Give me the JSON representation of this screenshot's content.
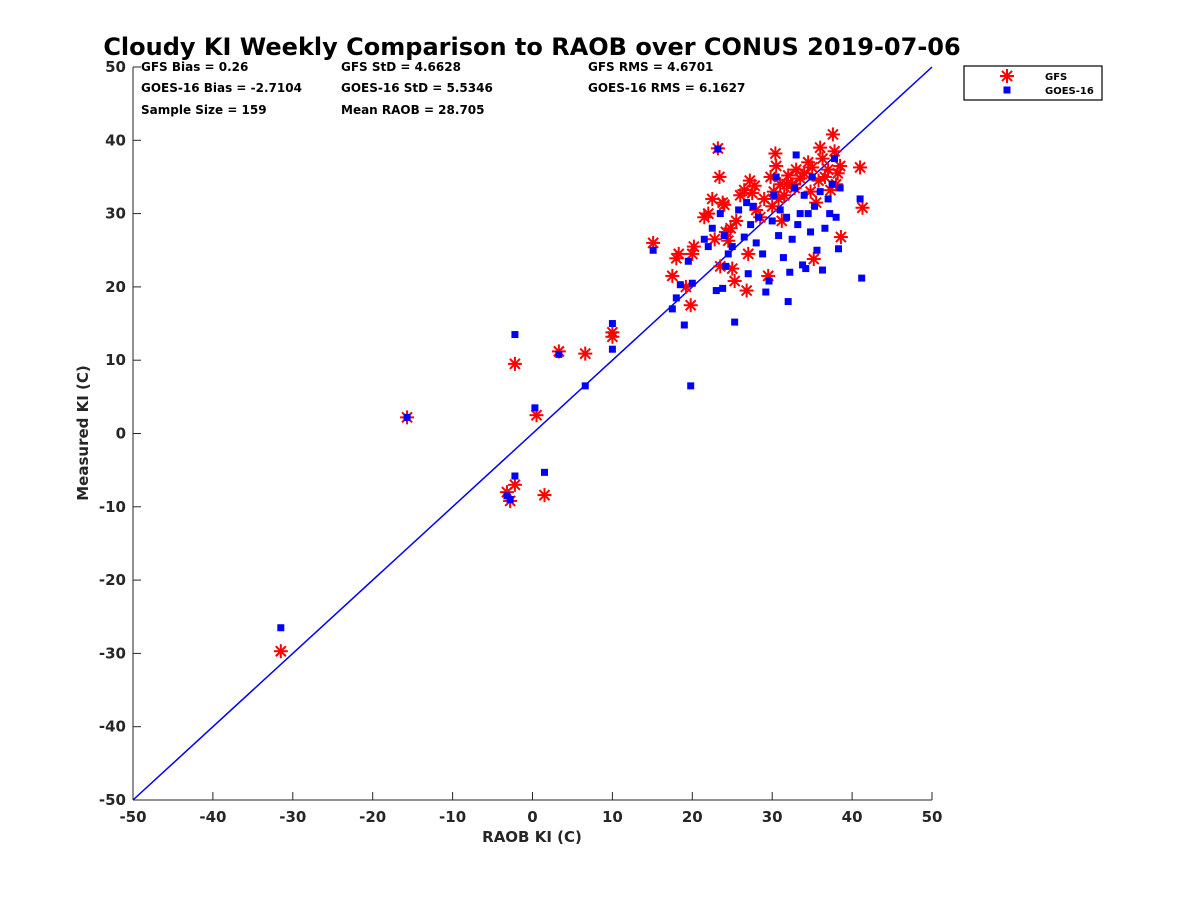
{
  "chart_data": {
    "type": "scatter",
    "title": "Cloudy KI Weekly Comparison to RAOB over CONUS 2019-07-06",
    "xlabel": "RAOB KI (C)",
    "ylabel": "Measured KI (C)",
    "xlim": [
      -50,
      50
    ],
    "ylim": [
      -50,
      50
    ],
    "xticks": [
      -50,
      -40,
      -30,
      -20,
      -10,
      0,
      10,
      20,
      30,
      40,
      50
    ],
    "yticks": [
      -50,
      -40,
      -30,
      -20,
      -10,
      0,
      10,
      20,
      30,
      40,
      50
    ],
    "grid": false,
    "legend_position": "top-right outside",
    "reference_line": {
      "type": "one-to-one",
      "color": "#0000ff"
    },
    "stats": [
      [
        "GFS Bias = 0.26",
        "GFS StD = 4.6628",
        "GFS RMS = 4.6701"
      ],
      [
        "GOES-16 Bias = -2.7104",
        "GOES-16 StD = 5.5346",
        "GOES-16 RMS = 6.1627"
      ],
      [
        "Sample Size = 159",
        "Mean RAOB = 28.705",
        ""
      ]
    ],
    "series": [
      {
        "name": "GFS",
        "marker": "asterisk",
        "color": "#ff0000",
        "points": [
          [
            -31.5,
            -29.7
          ],
          [
            -15.7,
            2.2
          ],
          [
            -3.2,
            -8
          ],
          [
            -2.8,
            -9.2
          ],
          [
            -2.2,
            -7
          ],
          [
            -2.2,
            9.5
          ],
          [
            0.5,
            2.5
          ],
          [
            1.5,
            -8.4
          ],
          [
            3.3,
            11.2
          ],
          [
            6.6,
            10.9
          ],
          [
            10,
            13.8
          ],
          [
            10,
            13.2
          ],
          [
            15.1,
            26
          ],
          [
            17.5,
            21.5
          ],
          [
            18,
            23.9
          ],
          [
            18.3,
            24.5
          ],
          [
            19.2,
            20
          ],
          [
            19.8,
            17.5
          ],
          [
            20,
            24.5
          ],
          [
            20.2,
            25.5
          ],
          [
            21.5,
            29.5
          ],
          [
            22,
            30
          ],
          [
            22.5,
            32
          ],
          [
            22.8,
            26.5
          ],
          [
            23.2,
            38.9
          ],
          [
            23.4,
            35
          ],
          [
            23.5,
            22.8
          ],
          [
            23.8,
            31.5
          ],
          [
            24,
            31.2
          ],
          [
            24.2,
            27.5
          ],
          [
            24.5,
            26.3
          ],
          [
            24.8,
            28
          ],
          [
            25,
            22.5
          ],
          [
            25.3,
            20.8
          ],
          [
            25.5,
            29
          ],
          [
            26,
            32.5
          ],
          [
            26.5,
            33.2
          ],
          [
            26.8,
            19.5
          ],
          [
            27,
            24.5
          ],
          [
            27.2,
            34.5
          ],
          [
            27.5,
            32.8
          ],
          [
            27.8,
            33.8
          ],
          [
            28,
            30.5
          ],
          [
            28.5,
            29.5
          ],
          [
            29,
            32
          ],
          [
            29.5,
            21.5
          ],
          [
            29.8,
            35
          ],
          [
            30,
            31
          ],
          [
            30.2,
            33
          ],
          [
            30.4,
            38.2
          ],
          [
            30.5,
            36.5
          ],
          [
            30.8,
            32
          ],
          [
            31,
            34
          ],
          [
            31.2,
            29
          ],
          [
            31.5,
            32.5
          ],
          [
            31.8,
            34
          ],
          [
            32,
            35.2
          ],
          [
            32.5,
            34
          ],
          [
            32.8,
            33.5
          ],
          [
            33,
            36
          ],
          [
            33.5,
            34.8
          ],
          [
            34,
            35.5
          ],
          [
            34.5,
            37
          ],
          [
            34.8,
            33
          ],
          [
            35,
            36.3
          ],
          [
            35.2,
            23.8
          ],
          [
            35.5,
            31.5
          ],
          [
            35.8,
            34.5
          ],
          [
            36,
            39
          ],
          [
            36.3,
            37.5
          ],
          [
            36.6,
            35
          ],
          [
            37,
            36
          ],
          [
            37.3,
            33.2
          ],
          [
            37.6,
            40.8
          ],
          [
            37.8,
            38.5
          ],
          [
            38,
            34
          ],
          [
            38.2,
            35.5
          ],
          [
            38.5,
            36.5
          ],
          [
            38.6,
            26.8
          ],
          [
            41,
            36.3
          ],
          [
            41.3,
            30.8
          ]
        ]
      },
      {
        "name": "GOES-16",
        "marker": "square",
        "color": "#0000ff",
        "points": [
          [
            -31.5,
            -26.5
          ],
          [
            -15.7,
            2.2
          ],
          [
            -3.2,
            -8.5
          ],
          [
            -2.8,
            -9
          ],
          [
            -2.2,
            -5.8
          ],
          [
            -2.2,
            13.5
          ],
          [
            0.3,
            3.5
          ],
          [
            1.5,
            -5.3
          ],
          [
            3.3,
            10.8
          ],
          [
            6.6,
            6.5
          ],
          [
            10,
            15
          ],
          [
            10,
            11.5
          ],
          [
            15.1,
            25
          ],
          [
            17.5,
            17
          ],
          [
            18,
            18.5
          ],
          [
            18.5,
            20.3
          ],
          [
            19,
            14.8
          ],
          [
            19.5,
            23.5
          ],
          [
            19.8,
            6.5
          ],
          [
            20,
            20.5
          ],
          [
            21.5,
            26.5
          ],
          [
            22,
            25.5
          ],
          [
            22.5,
            28
          ],
          [
            23,
            19.5
          ],
          [
            23.2,
            38.8
          ],
          [
            23.5,
            30
          ],
          [
            23.8,
            19.8
          ],
          [
            24,
            27
          ],
          [
            24.2,
            22.8
          ],
          [
            24.5,
            24.5
          ],
          [
            25,
            25.5
          ],
          [
            25.3,
            15.2
          ],
          [
            25.8,
            30.5
          ],
          [
            26.5,
            26.8
          ],
          [
            26.8,
            31.5
          ],
          [
            27,
            21.8
          ],
          [
            27.3,
            28.5
          ],
          [
            27.6,
            31
          ],
          [
            28,
            26
          ],
          [
            28.3,
            29.5
          ],
          [
            28.8,
            24.5
          ],
          [
            29.2,
            19.3
          ],
          [
            29.6,
            20.8
          ],
          [
            30,
            29
          ],
          [
            30.2,
            32.5
          ],
          [
            30.5,
            35
          ],
          [
            30.8,
            27
          ],
          [
            31,
            30.5
          ],
          [
            31.4,
            24
          ],
          [
            31.8,
            29.5
          ],
          [
            32,
            18
          ],
          [
            32.2,
            22
          ],
          [
            32.5,
            26.5
          ],
          [
            32.8,
            33.5
          ],
          [
            33,
            38
          ],
          [
            33.2,
            28.5
          ],
          [
            33.5,
            30
          ],
          [
            33.8,
            23
          ],
          [
            34,
            32.5
          ],
          [
            34.2,
            22.5
          ],
          [
            34.5,
            30
          ],
          [
            34.8,
            27.5
          ],
          [
            35,
            35
          ],
          [
            35.3,
            31
          ],
          [
            35.6,
            25
          ],
          [
            36,
            33
          ],
          [
            36.3,
            22.3
          ],
          [
            36.6,
            28
          ],
          [
            37,
            32
          ],
          [
            37.2,
            30
          ],
          [
            37.5,
            34
          ],
          [
            37.8,
            37.5
          ],
          [
            38,
            29.5
          ],
          [
            38.3,
            25.2
          ],
          [
            38.5,
            33.5
          ],
          [
            41,
            32
          ],
          [
            41.2,
            21.2
          ]
        ]
      }
    ]
  }
}
